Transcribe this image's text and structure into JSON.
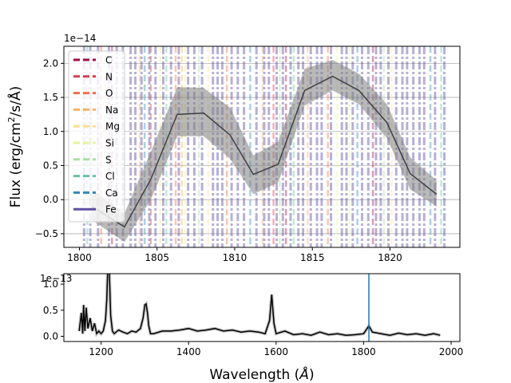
{
  "chart_data": [
    {
      "type": "line",
      "ylabel": "Flux (erg/cm$^2$/s/$\\AA$)",
      "ylabel_parts": {
        "base": "Flux (erg/cm",
        "sup": "2",
        "tail": "/s/Å)"
      },
      "offset_text": "1e−14",
      "xlim": [
        1799,
        1824.5
      ],
      "ylim": [
        -0.7,
        2.25
      ],
      "xticks": [
        1800,
        1805,
        1810,
        1815,
        1820
      ],
      "yticks": [
        -0.5,
        0.0,
        0.5,
        1.0,
        1.5,
        2.0
      ],
      "ytick_labels": [
        "−0.5",
        "0.0",
        "0.5",
        "1.0",
        "1.5",
        "2.0"
      ],
      "grid": "horizontal",
      "legend": {
        "placement": "upper-left",
        "entries": [
          {
            "name": "C",
            "color": "#a50b46"
          },
          {
            "name": "N",
            "color": "#d53e4f"
          },
          {
            "name": "O",
            "color": "#f46d43"
          },
          {
            "name": "Na",
            "color": "#fdae61"
          },
          {
            "name": "Mg",
            "color": "#fee08b"
          },
          {
            "name": "Si",
            "color": "#e6f598"
          },
          {
            "name": "S",
            "color": "#abdda4"
          },
          {
            "name": "Cl",
            "color": "#66c2a5"
          },
          {
            "name": "Ca",
            "color": "#3288bd"
          },
          {
            "name": "Fe",
            "color": "#5e4fa2"
          }
        ]
      },
      "series": [
        {
          "x": [
            1800.8,
            1802.9,
            1804.6,
            1806.3,
            1808.0,
            1809.7,
            1811.2,
            1812.8,
            1814.5,
            1816.3,
            1818.0,
            1819.8,
            1821.3,
            1823.0
          ],
          "y": [
            -0.1,
            -0.4,
            0.3,
            1.25,
            1.27,
            0.95,
            0.37,
            0.52,
            1.6,
            1.81,
            1.6,
            1.13,
            0.38,
            0.08
          ],
          "y_low": [
            -0.3,
            -0.62,
            0.0,
            0.93,
            0.93,
            0.6,
            0.08,
            0.25,
            1.38,
            1.6,
            1.4,
            0.9,
            0.15,
            -0.1
          ],
          "y_high": [
            0.15,
            -0.2,
            0.7,
            1.65,
            1.64,
            1.35,
            0.65,
            0.85,
            1.92,
            2.05,
            1.85,
            1.4,
            0.62,
            0.28
          ]
        }
      ]
    },
    {
      "type": "line",
      "xlabel": "Wavelength ($\\AA$)",
      "xlabel_parts": {
        "base": "Wavelength (",
        "italic": "Å",
        "tail": ")"
      },
      "offset_text": "1e−13",
      "xlim": [
        1115,
        2020
      ],
      "ylim": [
        -0.1,
        1.2
      ],
      "xticks": [
        1200,
        1400,
        1600,
        1800,
        2000
      ],
      "yticks": [
        0.0,
        0.5,
        1.0
      ],
      "ytick_labels": [
        "0.0",
        "0.5",
        "1.0"
      ],
      "marker_line": {
        "x": 1812,
        "color": "#1f77b4"
      },
      "series": [
        {
          "x": [
            1150,
            1155,
            1158,
            1160,
            1163,
            1166,
            1170,
            1175,
            1180,
            1185,
            1190,
            1195,
            1200,
            1205,
            1210,
            1213,
            1216,
            1219,
            1222,
            1226,
            1230,
            1240,
            1250,
            1260,
            1270,
            1280,
            1290,
            1296,
            1300,
            1303,
            1306,
            1309,
            1313,
            1320,
            1340,
            1360,
            1380,
            1400,
            1420,
            1440,
            1460,
            1480,
            1500,
            1520,
            1540,
            1560,
            1575,
            1585,
            1590,
            1595,
            1600,
            1620,
            1640,
            1660,
            1680,
            1700,
            1720,
            1740,
            1760,
            1780,
            1800,
            1812,
            1820,
            1840,
            1860,
            1880,
            1900,
            1920,
            1940,
            1960,
            1975
          ],
          "y": [
            0.1,
            0.45,
            0.05,
            0.6,
            0.1,
            0.55,
            0.15,
            0.35,
            0.1,
            0.25,
            0.05,
            0.1,
            0.05,
            0.1,
            0.3,
            0.7,
            1.5,
            1.2,
            0.4,
            0.1,
            0.05,
            0.12,
            0.08,
            0.05,
            0.1,
            0.08,
            0.15,
            0.35,
            0.6,
            0.62,
            0.45,
            0.2,
            0.05,
            0.05,
            0.1,
            0.1,
            0.12,
            0.15,
            0.1,
            0.12,
            0.15,
            0.1,
            0.12,
            0.08,
            0.1,
            0.08,
            0.05,
            0.3,
            0.8,
            0.25,
            0.05,
            0.1,
            0.03,
            0.05,
            0.02,
            0.08,
            0.03,
            0.05,
            0.02,
            0.03,
            0.05,
            0.2,
            0.08,
            0.05,
            0.02,
            0.06,
            0.03,
            0.05,
            0.02,
            0.05,
            0.02
          ]
        }
      ]
    }
  ],
  "line_list": {
    "C": [
      1802.1,
      1813.3,
      1818.9
    ],
    "N": [
      1804.6,
      1812.5
    ],
    "O": [
      1801.4,
      1806.2,
      1809.5,
      1816.0
    ],
    "Na": [
      1803.9,
      1806.6,
      1811.8,
      1814.7
    ],
    "Mg": [
      1805.2,
      1808.3,
      1820.1
    ],
    "Si": [
      1806.8,
      1816.6,
      1817.4
    ],
    "S": [
      1807.7,
      1812.9,
      1819.6
    ],
    "Cl": [
      1800.5,
      1805.6,
      1813.8,
      1823.3
    ],
    "Ca": [
      1804.2,
      1811.0,
      1817.9,
      1822.6
    ],
    "Fe": [
      1800.3,
      1800.7,
      1801.2,
      1801.9,
      1802.4,
      1802.8,
      1803.3,
      1803.6,
      1804.0,
      1804.5,
      1804.9,
      1805.4,
      1805.9,
      1806.4,
      1807.0,
      1807.4,
      1807.9,
      1808.6,
      1808.9,
      1809.2,
      1809.8,
      1810.2,
      1810.6,
      1811.4,
      1811.9,
      1812.2,
      1812.7,
      1813.1,
      1813.6,
      1814.1,
      1814.4,
      1814.9,
      1815.3,
      1815.6,
      1816.2,
      1816.9,
      1817.2,
      1817.6,
      1818.2,
      1818.6,
      1819.1,
      1819.4,
      1819.9,
      1820.4,
      1820.8,
      1821.1,
      1821.5,
      1821.9,
      1822.2,
      1822.9,
      1823.5
    ]
  }
}
